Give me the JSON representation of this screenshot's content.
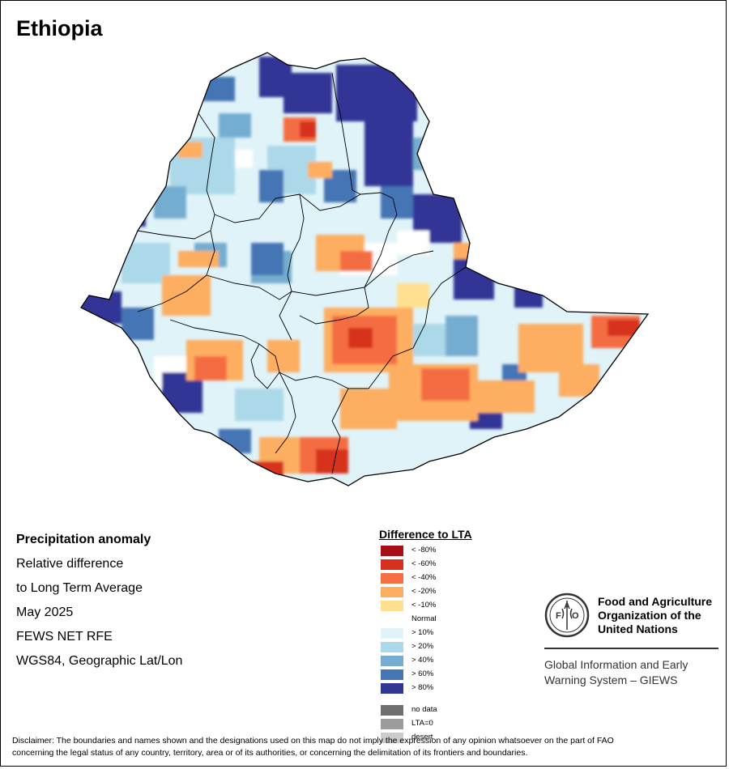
{
  "map": {
    "title": "Ethiopia"
  },
  "info": {
    "heading": "Precipitation anomaly",
    "lines": [
      "Relative difference",
      "to Long Term Average",
      "May 2025",
      "FEWS NET RFE",
      "WGS84, Geographic Lat/Lon"
    ]
  },
  "legend": {
    "title": "Difference to LTA",
    "classes": [
      {
        "label": "< -80%",
        "color": "#a50f15"
      },
      {
        "label": "< -60%",
        "color": "#d7301f"
      },
      {
        "label": "< -40%",
        "color": "#f46d43"
      },
      {
        "label": "< -20%",
        "color": "#fdae61"
      },
      {
        "label": "< -10%",
        "color": "#fee090"
      },
      {
        "label": "Normal",
        "color": "#ffffff"
      },
      {
        "label": "> 10%",
        "color": "#e0f3f8"
      },
      {
        "label": "> 20%",
        "color": "#abd9e9"
      },
      {
        "label": "> 40%",
        "color": "#74add1"
      },
      {
        "label": "> 60%",
        "color": "#4575b4"
      },
      {
        "label": "> 80%",
        "color": "#313695"
      }
    ],
    "extra": [
      {
        "label": "no data",
        "color": "#6e6e6e"
      },
      {
        "label": "LTA=0",
        "color": "#9c9c9c"
      },
      {
        "label": "desert",
        "color": "#cccccc"
      }
    ]
  },
  "fao": {
    "emblem_letters": [
      "F",
      "A",
      "O"
    ],
    "emblem_motto": "FIAT PANIS",
    "name_lines": [
      "Food and Agriculture",
      "Organization of the",
      "United Nations"
    ],
    "giews_lines": [
      "Global Information and Early",
      "Warning System – GIEWS"
    ]
  },
  "disclaimer": {
    "line1": "Disclaimer: The boundaries and names shown and the designations used on this map do not imply the expression of any opinion whatsoever on the part of FAO",
    "line2": "concerning the legal status of any country, territory, area or of its authorities, or concerning the delimitation of its frontiers and boundaries."
  }
}
